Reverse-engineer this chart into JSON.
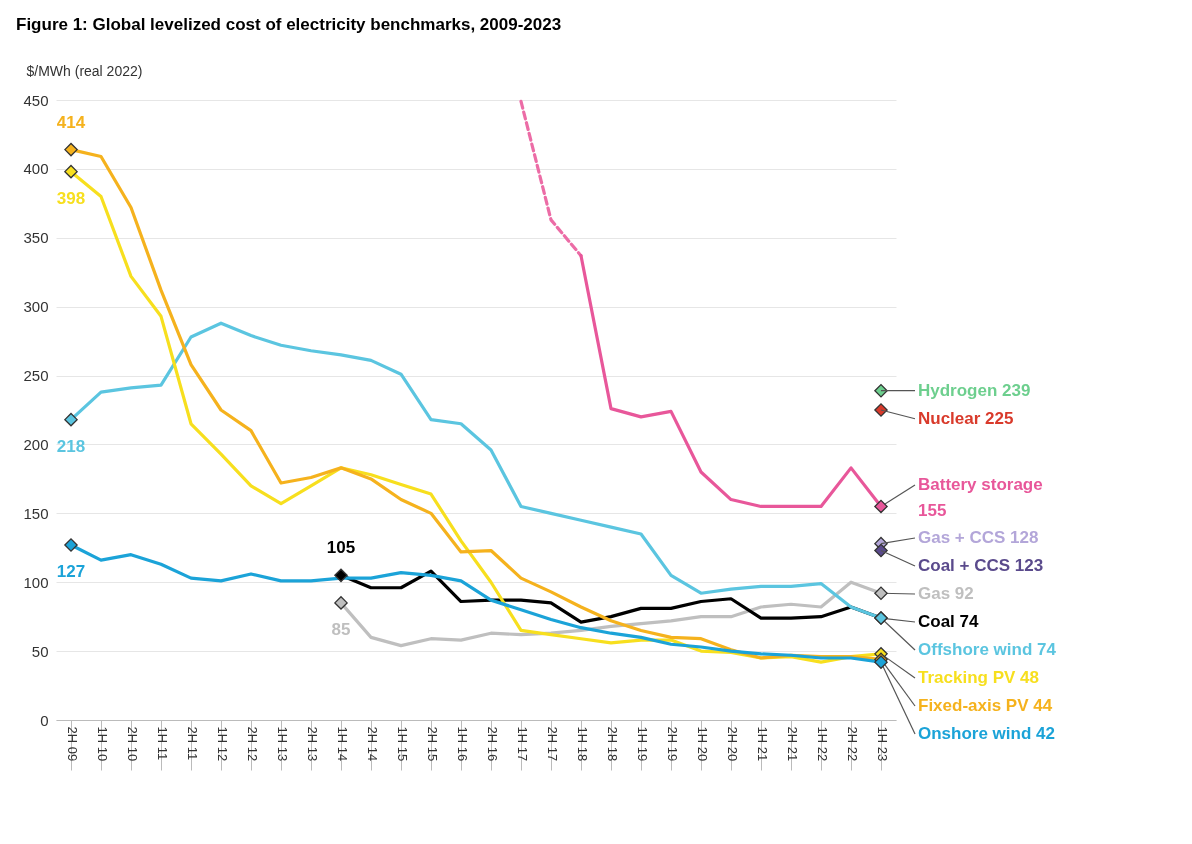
{
  "chart_data": {
    "type": "line",
    "title": "Figure 1: Global levelized cost of electricity benchmarks, 2009-2023",
    "ylabel": "$/MWh (real 2022)",
    "categories": [
      "2H 09",
      "1H 10",
      "2H 10",
      "1H 11",
      "2H 11",
      "1H 12",
      "2H 12",
      "1H 13",
      "2H 13",
      "1H 14",
      "2H 14",
      "1H 15",
      "2H 15",
      "1H 16",
      "2H 16",
      "1H 17",
      "2H 17",
      "1H 18",
      "2H 18",
      "1H 19",
      "2H 19",
      "1H 20",
      "2H 20",
      "1H 21",
      "2H 21",
      "1H 22",
      "2H 22",
      "1H 23"
    ],
    "ylim": [
      0,
      450
    ],
    "yticks": [
      0,
      50,
      100,
      150,
      200,
      250,
      300,
      350,
      400,
      450
    ],
    "grid": "y",
    "line_style": "solid",
    "series": [
      {
        "name": "Hydrogen",
        "type": "scatter",
        "marker": "diamond",
        "color": "#6dcf8e",
        "values": [
          null,
          null,
          null,
          null,
          null,
          null,
          null,
          null,
          null,
          null,
          null,
          null,
          null,
          null,
          null,
          null,
          null,
          null,
          null,
          null,
          null,
          null,
          null,
          null,
          null,
          null,
          null,
          239
        ],
        "value_labels": [
          null,
          null,
          null,
          null,
          null,
          null,
          null,
          null,
          null,
          null,
          null,
          null,
          null,
          null,
          null,
          null,
          null,
          null,
          null,
          null,
          null,
          null,
          null,
          null,
          null,
          null,
          null,
          "239"
        ]
      },
      {
        "name": "Nuclear",
        "type": "scatter",
        "marker": "diamond",
        "color": "#d93a2b",
        "values": [
          null,
          null,
          null,
          null,
          null,
          null,
          null,
          null,
          null,
          null,
          null,
          null,
          null,
          null,
          null,
          null,
          null,
          null,
          null,
          null,
          null,
          null,
          null,
          null,
          null,
          null,
          null,
          225
        ],
        "value_labels": [
          null,
          null,
          null,
          null,
          null,
          null,
          null,
          null,
          null,
          null,
          null,
          null,
          null,
          null,
          null,
          null,
          null,
          null,
          null,
          null,
          null,
          null,
          null,
          null,
          null,
          null,
          null,
          "225"
        ]
      },
      {
        "color": "#ec6ca6",
        "line_style": "dashed",
        "values": [
          null,
          null,
          null,
          null,
          null,
          null,
          null,
          null,
          null,
          null,
          null,
          null,
          null,
          null,
          null,
          449,
          363,
          337,
          null,
          null,
          null,
          null,
          null,
          null,
          null,
          null,
          null,
          null
        ]
      },
      {
        "name": "Battery storage",
        "color": "#e8579a",
        "values": [
          null,
          null,
          null,
          null,
          null,
          null,
          null,
          null,
          null,
          null,
          null,
          null,
          null,
          null,
          null,
          null,
          null,
          337,
          226,
          220,
          224,
          180,
          160,
          155,
          155,
          155,
          183,
          155
        ],
        "value_labels": [
          null,
          null,
          null,
          null,
          null,
          null,
          null,
          null,
          null,
          null,
          null,
          null,
          null,
          null,
          null,
          null,
          null,
          null,
          null,
          null,
          null,
          null,
          null,
          null,
          null,
          null,
          null,
          "155"
        ]
      },
      {
        "name": "Gas + CCS",
        "type": "scatter",
        "marker": "diamond",
        "color": "#b3a6d9",
        "values": [
          null,
          null,
          null,
          null,
          null,
          null,
          null,
          null,
          null,
          null,
          null,
          null,
          null,
          null,
          null,
          null,
          null,
          null,
          null,
          null,
          null,
          null,
          null,
          null,
          null,
          null,
          null,
          128
        ],
        "value_labels": [
          null,
          null,
          null,
          null,
          null,
          null,
          null,
          null,
          null,
          null,
          null,
          null,
          null,
          null,
          null,
          null,
          null,
          null,
          null,
          null,
          null,
          null,
          null,
          null,
          null,
          null,
          null,
          "128"
        ]
      },
      {
        "name": "Coal + CCS",
        "type": "scatter",
        "marker": "diamond",
        "color": "#5a4a8c",
        "values": [
          null,
          null,
          null,
          null,
          null,
          null,
          null,
          null,
          null,
          null,
          null,
          null,
          null,
          null,
          null,
          null,
          null,
          null,
          null,
          null,
          null,
          null,
          null,
          null,
          null,
          null,
          null,
          123
        ],
        "value_labels": [
          null,
          null,
          null,
          null,
          null,
          null,
          null,
          null,
          null,
          null,
          null,
          null,
          null,
          null,
          null,
          null,
          null,
          null,
          null,
          null,
          null,
          null,
          null,
          null,
          null,
          null,
          null,
          "123"
        ]
      },
      {
        "name": "Gas",
        "color": "#bfbfbf",
        "values": [
          null,
          null,
          null,
          null,
          null,
          null,
          null,
          null,
          null,
          85,
          60,
          54,
          59,
          58,
          63,
          62,
          63,
          65,
          68,
          70,
          72,
          75,
          75,
          82,
          84,
          82,
          100,
          92
        ],
        "value_labels": [
          null,
          null,
          null,
          null,
          null,
          null,
          null,
          null,
          null,
          "85",
          null,
          null,
          null,
          null,
          null,
          null,
          null,
          null,
          null,
          null,
          null,
          null,
          null,
          null,
          null,
          null,
          null,
          "92"
        ]
      },
      {
        "name": "Coal",
        "color": "#000000",
        "values": [
          null,
          null,
          null,
          null,
          null,
          null,
          null,
          null,
          null,
          105,
          96,
          96,
          108,
          86,
          87,
          87,
          85,
          71,
          75,
          81,
          81,
          86,
          88,
          74,
          74,
          75,
          82,
          74
        ],
        "value_labels": [
          null,
          null,
          null,
          null,
          null,
          null,
          null,
          null,
          null,
          "105",
          null,
          null,
          null,
          null,
          null,
          null,
          null,
          null,
          null,
          null,
          null,
          null,
          null,
          null,
          null,
          null,
          null,
          "74"
        ]
      },
      {
        "name": "Offshore wind",
        "color": "#5bc5e0",
        "values": [
          218,
          238,
          241,
          243,
          278,
          288,
          279,
          272,
          268,
          265,
          261,
          251,
          218,
          215,
          196,
          155,
          150,
          145,
          140,
          135,
          105,
          92,
          95,
          97,
          97,
          99,
          82,
          74
        ],
        "value_labels": [
          "218",
          null,
          null,
          null,
          null,
          null,
          null,
          null,
          null,
          null,
          null,
          null,
          null,
          null,
          null,
          null,
          null,
          null,
          null,
          null,
          null,
          null,
          null,
          null,
          null,
          null,
          null,
          "74"
        ]
      },
      {
        "name": "Tracking PV",
        "color": "#f7df1e",
        "values": [
          398,
          380,
          322,
          293,
          215,
          193,
          170,
          157,
          170,
          183,
          178,
          171,
          164,
          130,
          100,
          65,
          62,
          59,
          56,
          58,
          58,
          50,
          49,
          45,
          46,
          42,
          46,
          48
        ],
        "value_labels": [
          "398",
          null,
          null,
          null,
          null,
          null,
          null,
          null,
          null,
          null,
          null,
          null,
          null,
          null,
          null,
          null,
          null,
          null,
          null,
          null,
          null,
          null,
          null,
          null,
          null,
          null,
          null,
          "48"
        ]
      },
      {
        "name": "Fixed-axis PV",
        "color": "#f5b21d",
        "values": [
          414,
          409,
          372,
          312,
          258,
          225,
          210,
          172,
          176,
          183,
          175,
          160,
          150,
          122,
          123,
          103,
          93,
          82,
          72,
          65,
          60,
          59,
          51,
          45,
          47,
          46,
          46,
          44
        ],
        "value_labels": [
          "414",
          null,
          null,
          null,
          null,
          null,
          null,
          null,
          null,
          null,
          null,
          null,
          null,
          null,
          null,
          null,
          null,
          null,
          null,
          null,
          null,
          null,
          null,
          null,
          null,
          null,
          null,
          "44"
        ]
      },
      {
        "name": "Onshore wind",
        "color": "#1ba3d8",
        "values": [
          127,
          116,
          120,
          113,
          103,
          101,
          106,
          101,
          101,
          103,
          103,
          107,
          105,
          101,
          87,
          80,
          73,
          67,
          63,
          60,
          55,
          53,
          50,
          48,
          47,
          45,
          45,
          42
        ],
        "value_labels": [
          "127",
          null,
          null,
          null,
          null,
          null,
          null,
          null,
          null,
          null,
          null,
          null,
          null,
          null,
          null,
          null,
          null,
          null,
          null,
          null,
          null,
          null,
          null,
          null,
          null,
          null,
          null,
          "42"
        ]
      }
    ]
  }
}
